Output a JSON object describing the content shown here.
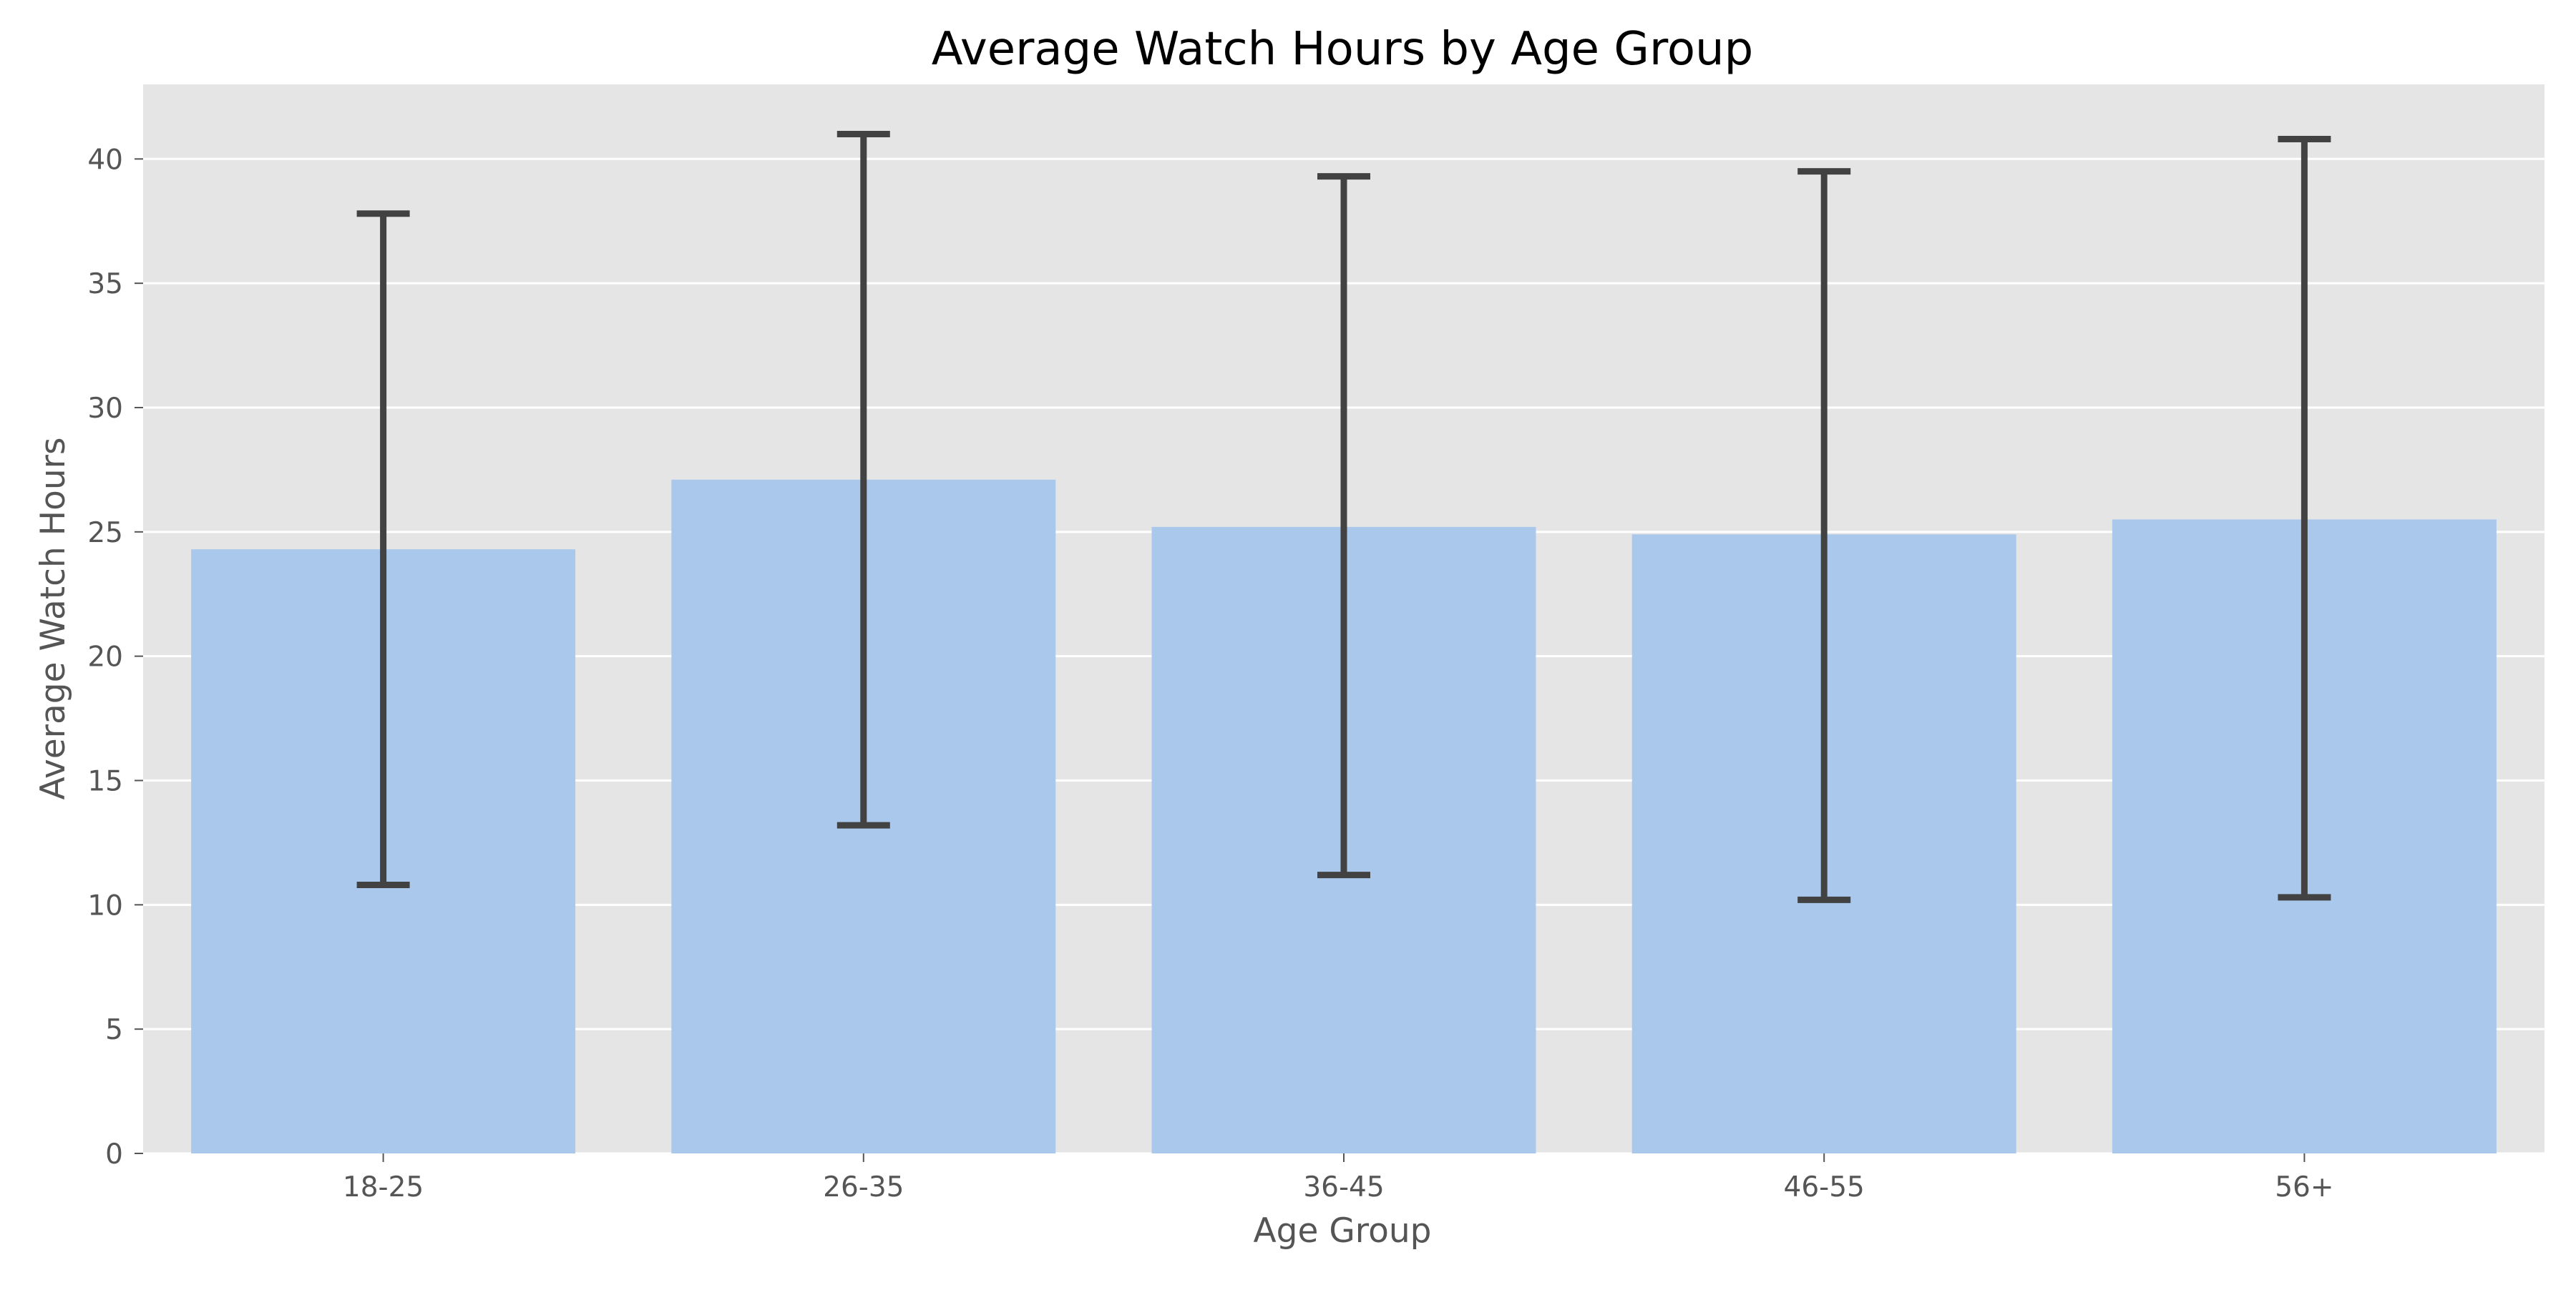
{
  "chart_data": {
    "type": "bar",
    "title": "Average Watch Hours by Age Group",
    "xlabel": "Age Group",
    "ylabel": "Average Watch Hours",
    "categories": [
      "18-25",
      "26-35",
      "36-45",
      "46-55",
      "56+"
    ],
    "values": [
      24.3,
      27.1,
      25.2,
      24.9,
      25.5
    ],
    "error_bars": [
      {
        "low": 10.8,
        "high": 37.8
      },
      {
        "low": 13.2,
        "high": 41.0
      },
      {
        "low": 11.2,
        "high": 39.3
      },
      {
        "low": 10.2,
        "high": 39.5
      },
      {
        "low": 10.3,
        "high": 40.8
      }
    ],
    "ylim": [
      0,
      43
    ],
    "yticks": [
      0,
      5,
      10,
      15,
      20,
      25,
      30,
      35,
      40
    ],
    "grid": true,
    "legend": "none",
    "colors": {
      "bar": "#aac8eb",
      "plot_background": "#e5e5e5",
      "grid": "#ffffff",
      "error_bar": "#424242",
      "tick_text": "#555555",
      "title_text": "#000000"
    }
  }
}
